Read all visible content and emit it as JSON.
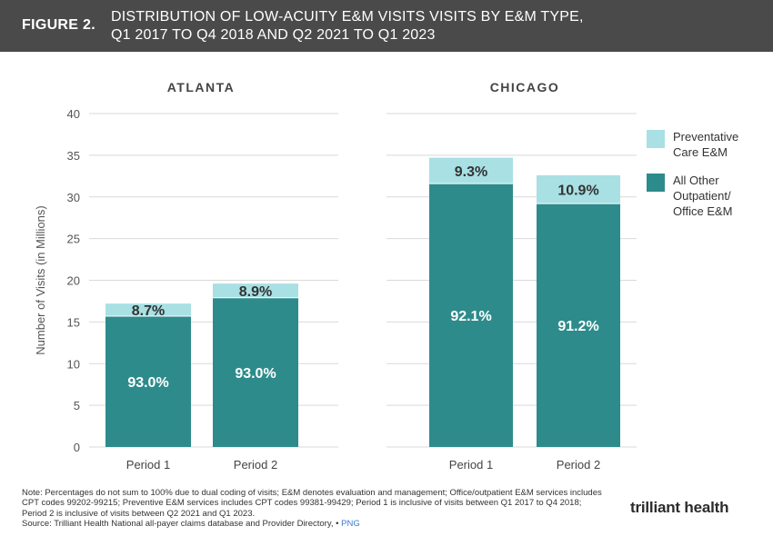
{
  "header": {
    "figure_label": "FIGURE 2.",
    "title_line1": "DISTRIBUTION OF LOW-ACUITY E&M VISITS VISITS BY E&M TYPE,",
    "title_line2": "Q1 2017 TO Q4 2018 AND Q2 2021 TO Q1 2023"
  },
  "colors": {
    "header_bg": "#4a4a4a",
    "other": "#2e8b8b",
    "preventative": "#a8e0e4",
    "grid": "#d9d9d9"
  },
  "chart_data": [
    {
      "type": "bar",
      "stacked": true,
      "panel": "ATLANTA",
      "categories": [
        "Period 1",
        "Period 2"
      ],
      "ylabel": "Number of Visits (in Millions)",
      "ylim": [
        0,
        40
      ],
      "yticks": [
        0,
        5,
        10,
        15,
        20,
        25,
        30,
        35,
        40
      ],
      "series": [
        {
          "name": "All Other Outpatient/ Office E&M",
          "values": [
            15.7,
            17.9
          ],
          "labels": [
            "93.0%",
            "93.0%"
          ]
        },
        {
          "name": "Preventative Care E&M",
          "values": [
            1.5,
            1.7
          ],
          "labels": [
            "8.7%",
            "8.9%"
          ]
        }
      ]
    },
    {
      "type": "bar",
      "stacked": true,
      "panel": "CHICAGO",
      "categories": [
        "Period 1",
        "Period 2"
      ],
      "ylim": [
        0,
        40
      ],
      "series": [
        {
          "name": "All Other Outpatient/ Office E&M",
          "values": [
            31.6,
            29.2
          ],
          "labels": [
            "92.1%",
            "91.2%"
          ]
        },
        {
          "name": "Preventative Care E&M",
          "values": [
            3.1,
            3.4
          ],
          "labels": [
            "9.3%",
            "10.9%"
          ]
        }
      ]
    }
  ],
  "legend": [
    {
      "label_line1": "Preventative",
      "label_line2": "Care E&M",
      "color": "#a8e0e4"
    },
    {
      "label_line1": "All Other",
      "label_line2": "Outpatient/",
      "label_line3": "Office E&M",
      "color": "#2e8b8b"
    }
  ],
  "note": {
    "text": "Note: Percentages do not sum to 100% due to dual coding of visits; E&M denotes evaluation and management; Office/outpatient E&M services includes CPT codes 99202-99215; Preventive E&M services includes CPT codes 99381-99429; Period 1 is inclusive of visits between Q1 2017 to Q4 2018; Period 2 is inclusive of visits between Q2 2021 and Q1 2023.",
    "source": "Source: Trilliant Health National all-payer claims database and Provider Directory,",
    "bullet": "•",
    "png": "PNG"
  },
  "logo": {
    "text": "trilliant health"
  }
}
